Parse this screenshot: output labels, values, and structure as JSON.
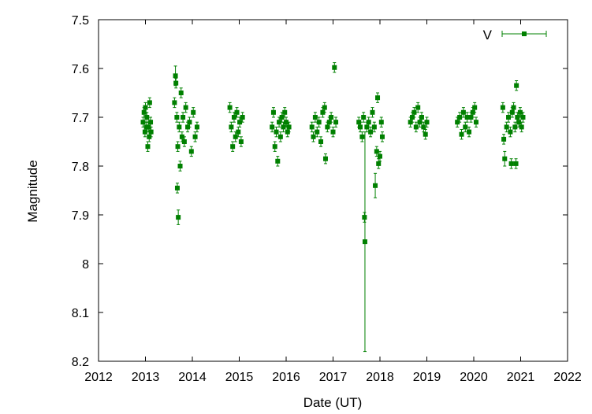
{
  "chart_data": {
    "type": "scatter",
    "title": "",
    "xlabel": "Date (UT)",
    "ylabel": "Magnitude",
    "xlim": [
      2012,
      2022
    ],
    "ylim": [
      7.5,
      8.2
    ],
    "y_inverted": true,
    "grid": false,
    "legend_position": "top-right",
    "x_ticks": [
      "2012",
      "2013",
      "2014",
      "2015",
      "2016",
      "2017",
      "2018",
      "2019",
      "2020",
      "2021",
      "2022"
    ],
    "x_tick_values": [
      2012,
      2013,
      2014,
      2015,
      2016,
      2017,
      2018,
      2019,
      2020,
      2021,
      2022
    ],
    "y_ticks": [
      "7.5",
      "7.6",
      "7.7",
      "7.8",
      "7.9",
      "8",
      "8.1",
      "8.2"
    ],
    "y_tick_values": [
      7.5,
      7.6,
      7.7,
      7.8,
      7.9,
      8.0,
      8.1,
      8.2
    ],
    "colors": {
      "series": "#008000"
    },
    "series": [
      {
        "name": "V",
        "marker": "square",
        "error_bars": true,
        "points": [
          [
            2012.95,
            7.71,
            0.01
          ],
          [
            2012.97,
            7.69,
            0.01
          ],
          [
            2012.99,
            7.73,
            0.01
          ],
          [
            2013.0,
            7.68,
            0.01
          ],
          [
            2013.02,
            7.72,
            0.01
          ],
          [
            2013.03,
            7.7,
            0.01
          ],
          [
            2013.05,
            7.76,
            0.01
          ],
          [
            2013.06,
            7.72,
            0.01
          ],
          [
            2013.08,
            7.74,
            0.01
          ],
          [
            2013.09,
            7.67,
            0.01
          ],
          [
            2013.11,
            7.71,
            0.01
          ],
          [
            2013.12,
            7.73,
            0.01
          ],
          [
            2013.62,
            7.67,
            0.01
          ],
          [
            2013.64,
            7.615,
            0.02
          ],
          [
            2013.65,
            7.63,
            0.01
          ],
          [
            2013.67,
            7.7,
            0.01
          ],
          [
            2013.68,
            7.845,
            0.01
          ],
          [
            2013.69,
            7.76,
            0.01
          ],
          [
            2013.7,
            7.905,
            0.015
          ],
          [
            2013.72,
            7.72,
            0.01
          ],
          [
            2013.74,
            7.8,
            0.01
          ],
          [
            2013.76,
            7.65,
            0.01
          ],
          [
            2013.78,
            7.74,
            0.01
          ],
          [
            2013.8,
            7.7,
            0.01
          ],
          [
            2013.83,
            7.75,
            0.01
          ],
          [
            2013.86,
            7.68,
            0.01
          ],
          [
            2013.9,
            7.72,
            0.01
          ],
          [
            2013.94,
            7.71,
            0.01
          ],
          [
            2013.98,
            7.77,
            0.01
          ],
          [
            2014.02,
            7.69,
            0.01
          ],
          [
            2014.06,
            7.74,
            0.01
          ],
          [
            2014.1,
            7.72,
            0.01
          ],
          [
            2014.8,
            7.68,
            0.01
          ],
          [
            2014.83,
            7.72,
            0.01
          ],
          [
            2014.86,
            7.76,
            0.01
          ],
          [
            2014.89,
            7.7,
            0.01
          ],
          [
            2014.92,
            7.74,
            0.01
          ],
          [
            2014.95,
            7.69,
            0.01
          ],
          [
            2014.98,
            7.73,
            0.01
          ],
          [
            2015.01,
            7.71,
            0.01
          ],
          [
            2015.04,
            7.75,
            0.01
          ],
          [
            2015.07,
            7.7,
            0.01
          ],
          [
            2015.7,
            7.72,
            0.01
          ],
          [
            2015.73,
            7.69,
            0.01
          ],
          [
            2015.76,
            7.76,
            0.01
          ],
          [
            2015.79,
            7.73,
            0.01
          ],
          [
            2015.82,
            7.79,
            0.01
          ],
          [
            2015.85,
            7.71,
            0.01
          ],
          [
            2015.88,
            7.74,
            0.01
          ],
          [
            2015.91,
            7.7,
            0.01
          ],
          [
            2015.94,
            7.72,
            0.01
          ],
          [
            2015.97,
            7.69,
            0.01
          ],
          [
            2016.0,
            7.71,
            0.01
          ],
          [
            2016.03,
            7.73,
            0.01
          ],
          [
            2016.06,
            7.72,
            0.01
          ],
          [
            2016.55,
            7.72,
            0.01
          ],
          [
            2016.58,
            7.74,
            0.01
          ],
          [
            2016.62,
            7.7,
            0.01
          ],
          [
            2016.66,
            7.73,
            0.01
          ],
          [
            2016.7,
            7.71,
            0.01
          ],
          [
            2016.74,
            7.75,
            0.01
          ],
          [
            2016.78,
            7.69,
            0.01
          ],
          [
            2016.82,
            7.68,
            0.01
          ],
          [
            2016.84,
            7.785,
            0.01
          ],
          [
            2016.88,
            7.72,
            0.01
          ],
          [
            2016.92,
            7.71,
            0.01
          ],
          [
            2016.96,
            7.7,
            0.01
          ],
          [
            2017.0,
            7.73,
            0.01
          ],
          [
            2017.03,
            7.598,
            0.01
          ],
          [
            2017.06,
            7.71,
            0.01
          ],
          [
            2017.55,
            7.71,
            0.01
          ],
          [
            2017.58,
            7.72,
            0.01
          ],
          [
            2017.62,
            7.74,
            0.01
          ],
          [
            2017.65,
            7.7,
            0.01
          ],
          [
            2017.67,
            7.905,
            0.01
          ],
          [
            2017.68,
            7.955,
            0.225
          ],
          [
            2017.72,
            7.72,
            0.01
          ],
          [
            2017.76,
            7.71,
            0.01
          ],
          [
            2017.8,
            7.73,
            0.01
          ],
          [
            2017.84,
            7.69,
            0.01
          ],
          [
            2017.88,
            7.72,
            0.01
          ],
          [
            2017.9,
            7.84,
            0.025
          ],
          [
            2017.93,
            7.77,
            0.01
          ],
          [
            2017.95,
            7.66,
            0.01
          ],
          [
            2017.97,
            7.795,
            0.01
          ],
          [
            2018.0,
            7.78,
            0.01
          ],
          [
            2018.03,
            7.71,
            0.01
          ],
          [
            2018.05,
            7.74,
            0.01
          ],
          [
            2018.65,
            7.71,
            0.01
          ],
          [
            2018.69,
            7.7,
            0.01
          ],
          [
            2018.73,
            7.69,
            0.01
          ],
          [
            2018.77,
            7.72,
            0.01
          ],
          [
            2018.81,
            7.68,
            0.01
          ],
          [
            2018.85,
            7.71,
            0.01
          ],
          [
            2018.89,
            7.7,
            0.01
          ],
          [
            2018.93,
            7.72,
            0.01
          ],
          [
            2018.97,
            7.735,
            0.01
          ],
          [
            2019.0,
            7.71,
            0.01
          ],
          [
            2019.65,
            7.71,
            0.01
          ],
          [
            2019.7,
            7.7,
            0.01
          ],
          [
            2019.74,
            7.735,
            0.01
          ],
          [
            2019.78,
            7.69,
            0.01
          ],
          [
            2019.82,
            7.72,
            0.01
          ],
          [
            2019.86,
            7.7,
            0.01
          ],
          [
            2019.9,
            7.73,
            0.01
          ],
          [
            2019.94,
            7.7,
            0.01
          ],
          [
            2019.98,
            7.69,
            0.01
          ],
          [
            2020.02,
            7.68,
            0.01
          ],
          [
            2020.05,
            7.71,
            0.01
          ],
          [
            2020.62,
            7.68,
            0.01
          ],
          [
            2020.64,
            7.745,
            0.01
          ],
          [
            2020.66,
            7.785,
            0.015
          ],
          [
            2020.7,
            7.72,
            0.01
          ],
          [
            2020.74,
            7.7,
            0.01
          ],
          [
            2020.78,
            7.73,
            0.01
          ],
          [
            2020.8,
            7.795,
            0.01
          ],
          [
            2020.82,
            7.69,
            0.01
          ],
          [
            2020.85,
            7.68,
            0.01
          ],
          [
            2020.88,
            7.72,
            0.01
          ],
          [
            2020.9,
            7.795,
            0.01
          ],
          [
            2020.91,
            7.635,
            0.01
          ],
          [
            2020.93,
            7.7,
            0.01
          ],
          [
            2020.96,
            7.71,
            0.01
          ],
          [
            2020.99,
            7.69,
            0.01
          ],
          [
            2021.02,
            7.72,
            0.01
          ],
          [
            2021.05,
            7.7,
            0.01
          ]
        ]
      }
    ]
  }
}
